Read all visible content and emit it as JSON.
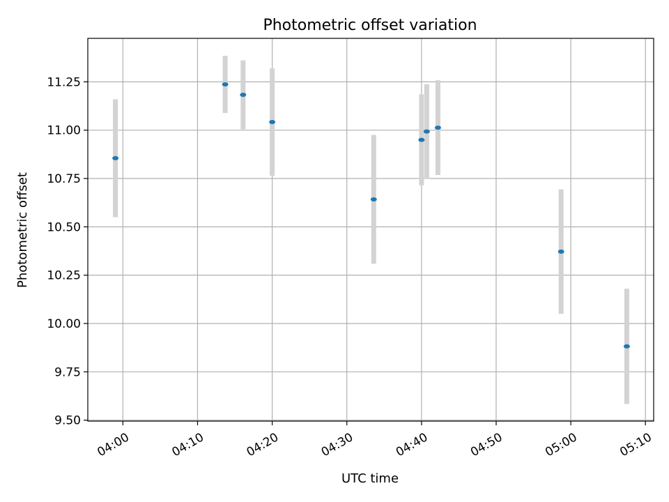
{
  "chart_data": {
    "type": "scatter",
    "title": "Photometric offset variation",
    "xlabel": "UTC time",
    "ylabel": "Photometric offset",
    "x_ticks": [
      {
        "minutes": 240,
        "label": "04:00"
      },
      {
        "minutes": 250,
        "label": "04:10"
      },
      {
        "minutes": 260,
        "label": "04:20"
      },
      {
        "minutes": 270,
        "label": "04:30"
      },
      {
        "minutes": 280,
        "label": "04:40"
      },
      {
        "minutes": 290,
        "label": "04:50"
      },
      {
        "minutes": 300,
        "label": "05:00"
      },
      {
        "minutes": 310,
        "label": "05:10"
      }
    ],
    "y_ticks": [
      {
        "value": 9.5,
        "label": "9.50"
      },
      {
        "value": 9.75,
        "label": "9.75"
      },
      {
        "value": 10.0,
        "label": "10.00"
      },
      {
        "value": 10.25,
        "label": "10.25"
      },
      {
        "value": 10.5,
        "label": "10.50"
      },
      {
        "value": 10.75,
        "label": "10.75"
      },
      {
        "value": 11.0,
        "label": "11.00"
      },
      {
        "value": 11.25,
        "label": "11.25"
      }
    ],
    "xlim": [
      235.3,
      311.1
    ],
    "ylim": [
      9.495,
      11.475
    ],
    "grid": true,
    "series": [
      {
        "name": "offset",
        "marker_color": "#1f77b4",
        "errorbar_color": "#d3d3d3",
        "points": [
          {
            "t": 239.0,
            "y": 10.855,
            "err": 0.305
          },
          {
            "t": 253.7,
            "y": 11.237,
            "err": 0.148
          },
          {
            "t": 256.1,
            "y": 11.183,
            "err": 0.178
          },
          {
            "t": 260.0,
            "y": 11.042,
            "err": 0.278
          },
          {
            "t": 273.6,
            "y": 10.642,
            "err": 0.333
          },
          {
            "t": 280.0,
            "y": 10.95,
            "err": 0.235
          },
          {
            "t": 280.7,
            "y": 10.993,
            "err": 0.245
          },
          {
            "t": 282.2,
            "y": 11.013,
            "err": 0.245
          },
          {
            "t": 298.7,
            "y": 10.372,
            "err": 0.322
          },
          {
            "t": 307.5,
            "y": 9.882,
            "err": 0.298
          }
        ]
      }
    ]
  }
}
